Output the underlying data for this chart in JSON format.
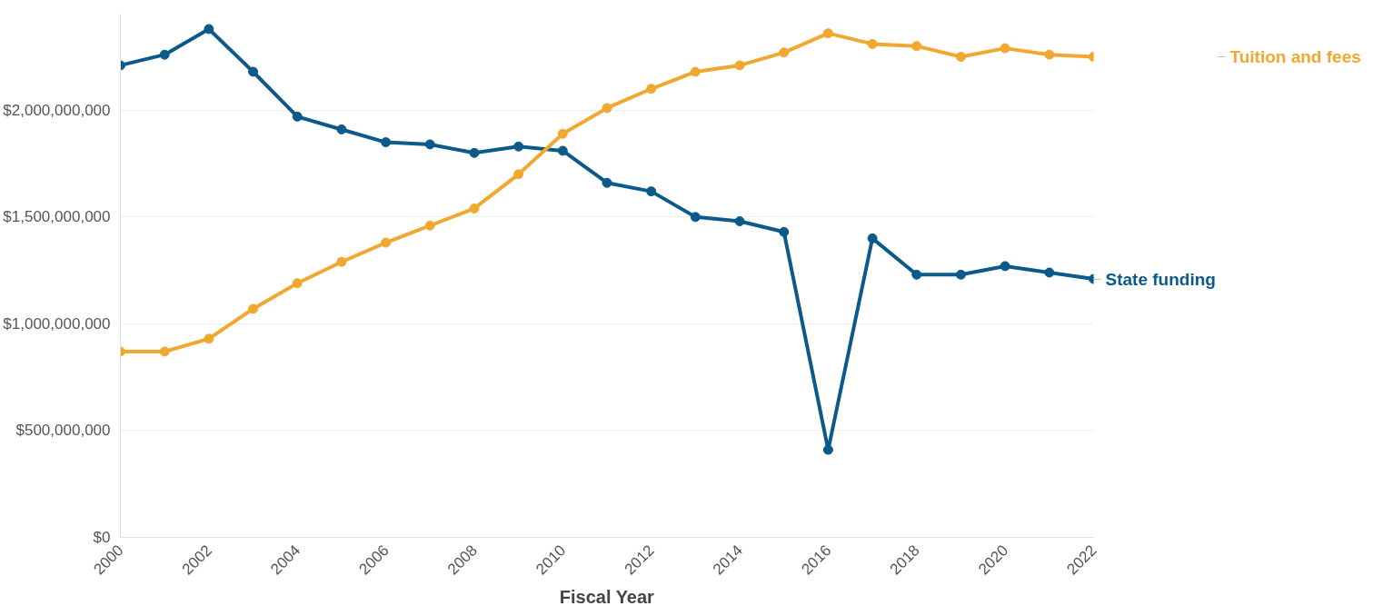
{
  "chart_data": {
    "type": "line",
    "xlabel": "Fiscal Year",
    "x": [
      2000,
      2001,
      2002,
      2003,
      2004,
      2005,
      2006,
      2007,
      2008,
      2009,
      2010,
      2011,
      2012,
      2013,
      2014,
      2015,
      2016,
      2017,
      2018,
      2019,
      2020,
      2021,
      2022
    ],
    "series": [
      {
        "name": "State funding",
        "color": "#0b5a8a",
        "values": [
          2210000000,
          2260000000,
          2380000000,
          2180000000,
          1970000000,
          1910000000,
          1850000000,
          1840000000,
          1800000000,
          1830000000,
          1810000000,
          1660000000,
          1620000000,
          1500000000,
          1480000000,
          1430000000,
          410000000,
          1400000000,
          1230000000,
          1230000000,
          1270000000,
          1240000000,
          1210000000
        ]
      },
      {
        "name": "Tuition and fees",
        "color": "#f0a830",
        "values": [
          870000000,
          870000000,
          930000000,
          1070000000,
          1190000000,
          1290000000,
          1380000000,
          1460000000,
          1540000000,
          1700000000,
          1890000000,
          2010000000,
          2100000000,
          2180000000,
          2210000000,
          2270000000,
          2360000000,
          2310000000,
          2300000000,
          2250000000,
          2290000000,
          2260000000,
          2250000000
        ]
      }
    ],
    "xlim": [
      2000,
      2022
    ],
    "xticks": [
      2000,
      2002,
      2004,
      2006,
      2008,
      2010,
      2012,
      2014,
      2016,
      2018,
      2020,
      2022
    ],
    "ylim": [
      0,
      2450000000
    ],
    "yticks": [
      {
        "value": 0,
        "label": "$0"
      },
      {
        "value": 500000000,
        "label": "$500,000,000"
      },
      {
        "value": 1000000000,
        "label": "$1,000,000,000"
      },
      {
        "value": 1500000000,
        "label": "$1,500,000,000"
      },
      {
        "value": 2000000000,
        "label": "$2,000,000,000"
      }
    ],
    "grid": "y",
    "legend": false,
    "marker": "circle",
    "line_style": "solid"
  }
}
